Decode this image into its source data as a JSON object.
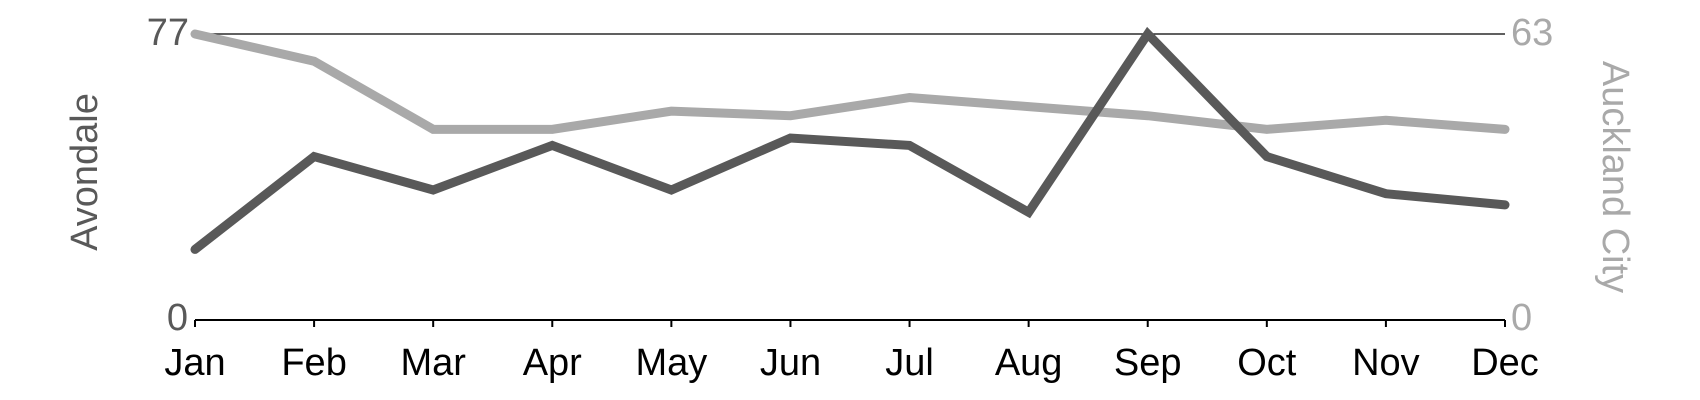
{
  "chart_data": {
    "type": "line",
    "title": "",
    "categories": [
      "Jan",
      "Feb",
      "Mar",
      "Apr",
      "May",
      "Jun",
      "Jul",
      "Aug",
      "Sep",
      "Oct",
      "Nov",
      "Dec"
    ],
    "series": [
      {
        "name": "Auckland City",
        "axis": "right",
        "color": "#a9a9a9",
        "values": [
          63,
          57,
          42,
          42,
          46,
          45,
          49,
          47,
          45,
          42,
          44,
          42
        ]
      },
      {
        "name": "Avondale",
        "axis": "left",
        "color": "#595959",
        "values": [
          19,
          44,
          35,
          47,
          35,
          49,
          47,
          29,
          77,
          44,
          34,
          31
        ]
      }
    ],
    "left_axis": {
      "label": "Avondale",
      "min": 0,
      "max": 77,
      "min_label": "0",
      "max_label": "77",
      "color": "#595959"
    },
    "right_axis": {
      "label": "Auckland City",
      "min": 0,
      "max": 63,
      "min_label": "0",
      "max_label": "63",
      "color": "#a9a9a9"
    },
    "x_axis": {
      "tick_label_color": "#000000"
    },
    "layout_hints": {
      "grid": "single horizontal reference line at axis maximum",
      "legend_position": "none; series identified by rotated side labels"
    }
  }
}
